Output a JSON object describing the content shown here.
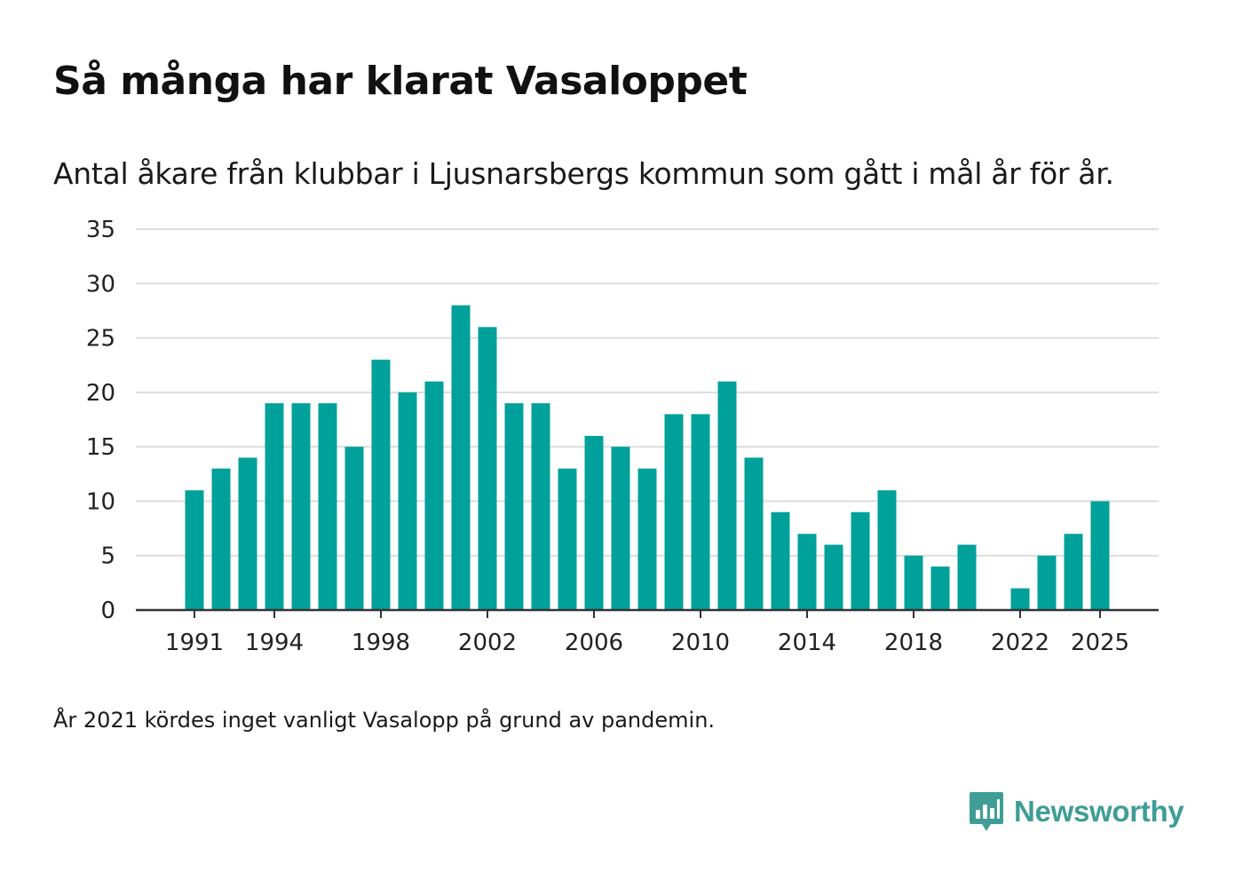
{
  "title": "Så många har klarat Vasaloppet",
  "subtitle": "Antal åkare från klubbar i Ljusnarsbergs kommun som gått i mål år för år.",
  "footnote": "År 2021 kördes inget vanligt Vasalopp på grund av pandemin.",
  "brand": {
    "name": "Newsworthy",
    "icon": "newsworthy-logo-icon"
  },
  "colors": {
    "bar": "#00a19a",
    "grid": "#dddddd",
    "axis": "#333333",
    "brand": "#3f9d96"
  },
  "chart_data": {
    "type": "bar",
    "title": "Så många har klarat Vasaloppet",
    "xlabel": "",
    "ylabel": "",
    "ylim": [
      0,
      35
    ],
    "yticks": [
      0,
      5,
      10,
      15,
      20,
      25,
      30,
      35
    ],
    "xticks": [
      1991,
      1994,
      1998,
      2002,
      2006,
      2010,
      2014,
      2018,
      2022,
      2025
    ],
    "grid": true,
    "categories": [
      1991,
      1992,
      1993,
      1994,
      1995,
      1996,
      1997,
      1998,
      1999,
      2000,
      2001,
      2002,
      2003,
      2004,
      2005,
      2006,
      2007,
      2008,
      2009,
      2010,
      2011,
      2012,
      2013,
      2014,
      2015,
      2016,
      2017,
      2018,
      2019,
      2020,
      2021,
      2022,
      2023,
      2024,
      2025
    ],
    "values": [
      11,
      13,
      14,
      19,
      19,
      19,
      15,
      23,
      20,
      21,
      28,
      26,
      19,
      19,
      13,
      16,
      15,
      13,
      18,
      18,
      21,
      14,
      9,
      7,
      6,
      9,
      11,
      5,
      4,
      6,
      null,
      2,
      5,
      7,
      10
    ]
  }
}
